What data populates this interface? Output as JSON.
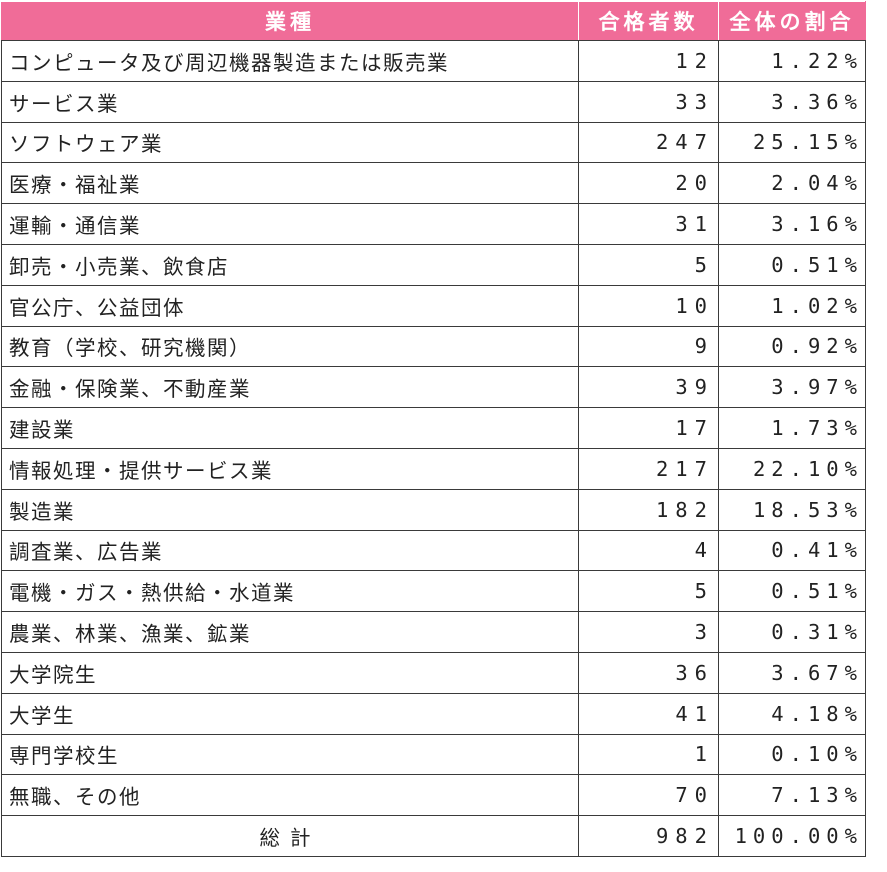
{
  "table": {
    "headers": {
      "industry": "業種",
      "passers": "合格者数",
      "ratio": "全体の割合"
    },
    "rows": [
      {
        "industry": "コンピュータ及び周辺機器製造または販売業",
        "passers": "12",
        "ratio": "1.22%"
      },
      {
        "industry": "サービス業",
        "passers": "33",
        "ratio": "3.36%"
      },
      {
        "industry": "ソフトウェア業",
        "passers": "247",
        "ratio": "25.15%"
      },
      {
        "industry": "医療・福祉業",
        "passers": "20",
        "ratio": "2.04%"
      },
      {
        "industry": "運輸・通信業",
        "passers": "31",
        "ratio": "3.16%"
      },
      {
        "industry": "卸売・小売業、飲食店",
        "passers": "5",
        "ratio": "0.51%"
      },
      {
        "industry": "官公庁、公益団体",
        "passers": "10",
        "ratio": "1.02%"
      },
      {
        "industry": "教育（学校、研究機関）",
        "passers": "9",
        "ratio": "0.92%"
      },
      {
        "industry": "金融・保険業、不動産業",
        "passers": "39",
        "ratio": "3.97%"
      },
      {
        "industry": "建設業",
        "passers": "17",
        "ratio": "1.73%"
      },
      {
        "industry": "情報処理・提供サービス業",
        "passers": "217",
        "ratio": "22.10%"
      },
      {
        "industry": "製造業",
        "passers": "182",
        "ratio": "18.53%"
      },
      {
        "industry": "調査業、広告業",
        "passers": "4",
        "ratio": "0.41%"
      },
      {
        "industry": "電機・ガス・熱供給・水道業",
        "passers": "5",
        "ratio": "0.51%"
      },
      {
        "industry": "農業、林業、漁業、鉱業",
        "passers": "3",
        "ratio": "0.31%"
      },
      {
        "industry": "大学院生",
        "passers": "36",
        "ratio": "3.67%"
      },
      {
        "industry": "大学生",
        "passers": "41",
        "ratio": "4.18%"
      },
      {
        "industry": "専門学校生",
        "passers": "1",
        "ratio": "0.10%"
      },
      {
        "industry": "無職、その他",
        "passers": "70",
        "ratio": "7.13%"
      }
    ],
    "total": {
      "label": "総計",
      "passers": "982",
      "ratio": "100.00%"
    }
  },
  "colors": {
    "header_background": "#f06c98",
    "header_text": "#ffffff",
    "border": "#3a3a3a"
  }
}
